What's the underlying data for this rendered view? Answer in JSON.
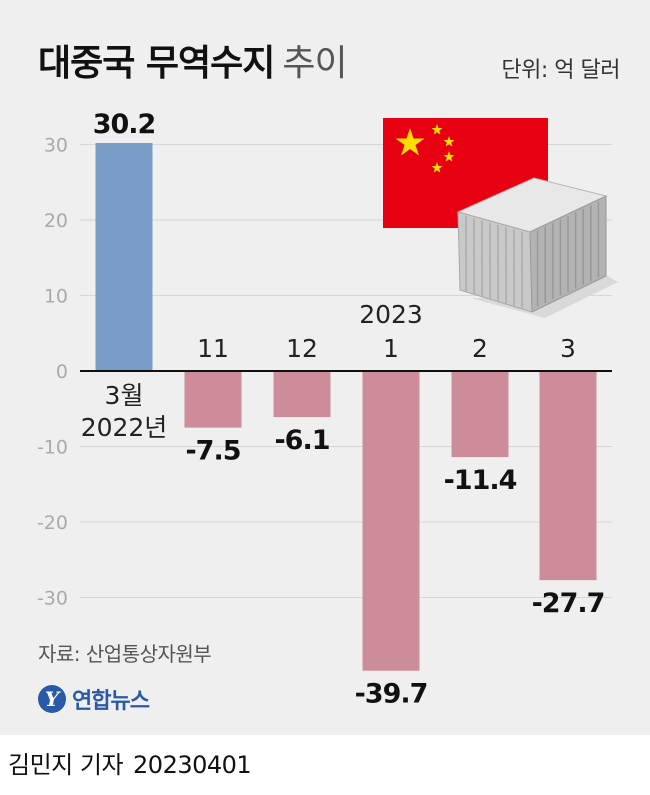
{
  "title_bold": "대중국 무역수지",
  "title_light": "추이",
  "unit": "단위: 억 달러",
  "source": "자료: 산업통상자원부",
  "logo_text": "연합뉴스",
  "reporter": "김민지 기자",
  "date": "20230401",
  "colors": {
    "positive": "#7a9dc7",
    "negative": "#cd8c99",
    "grid": "#d6d6d6",
    "axis": "#111111",
    "tick": "#aaaaaa",
    "flag_red": "#e60012",
    "flag_star": "#ffde00"
  },
  "chart_data": {
    "type": "bar",
    "title": "대중국 무역수지 추이",
    "unit": "억 달러",
    "categories": [
      [
        "3월",
        "2022년"
      ],
      [
        "11"
      ],
      [
        "12"
      ],
      [
        "2023",
        "1"
      ],
      [
        "2"
      ],
      [
        "3"
      ]
    ],
    "values": [
      30.2,
      -7.5,
      -6.1,
      -39.7,
      -11.4,
      -27.7
    ],
    "value_labels": [
      "30.2",
      "-7.5",
      "-6.1",
      "-39.7",
      "-11.4",
      "-27.7"
    ],
    "yticks": [
      30,
      20,
      10,
      0,
      -10,
      -20,
      -30
    ],
    "ylim": [
      -40,
      30
    ],
    "grid": true
  }
}
